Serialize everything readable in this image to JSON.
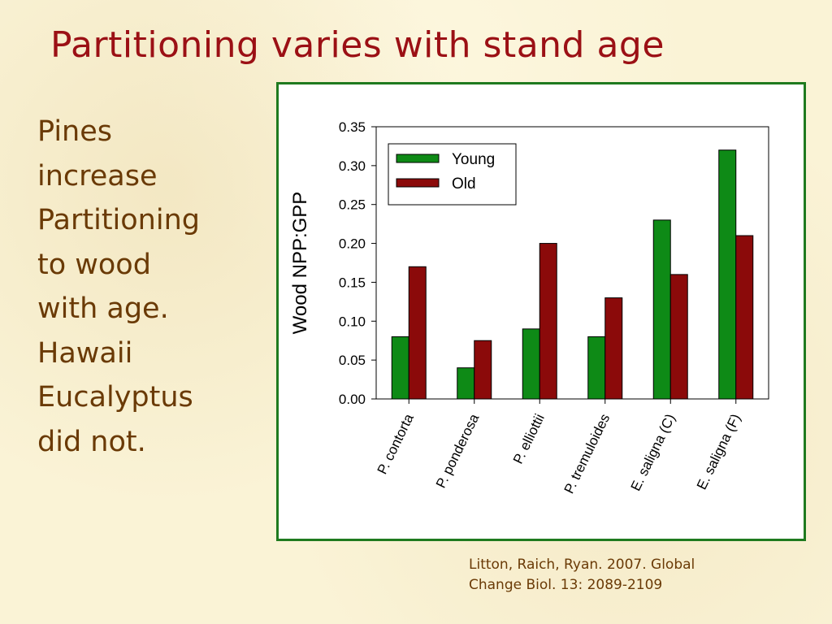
{
  "slide": {
    "title": "Partitioning varies with stand age",
    "side_text": "Pines\nincrease\nPartitioning\nto wood\nwith age.\nHawaii\nEucalyptus\ndid not.",
    "citation_line1": "Litton, Raich, Ryan. 2007. Global",
    "citation_line2": "Change Biol. 13: 2089-2109"
  },
  "colors": {
    "title": "#9b1015",
    "body_text": "#6a3a06",
    "frame": "#1f7a1f",
    "young": "#0e8a16",
    "old": "#8b0a0a"
  },
  "chart_data": {
    "type": "bar",
    "title": "",
    "xlabel": "",
    "ylabel": "Wood NPP:GPP",
    "categories": [
      "P. contorta",
      "P. ponderosa",
      "P. elliottii",
      "P. tremuloides",
      "E. saligna (C)",
      "E. saligna (F)"
    ],
    "series": [
      {
        "name": "Young",
        "color": "#0e8a16",
        "values": [
          0.08,
          0.04,
          0.09,
          0.08,
          0.23,
          0.32
        ]
      },
      {
        "name": "Old",
        "color": "#8b0a0a",
        "values": [
          0.17,
          0.075,
          0.2,
          0.13,
          0.16,
          0.21
        ]
      }
    ],
    "ylim": [
      0,
      0.35
    ],
    "yticks": [
      0.0,
      0.05,
      0.1,
      0.15,
      0.2,
      0.25,
      0.3,
      0.35
    ],
    "ytick_labels": [
      "0.00",
      "0.05",
      "0.10",
      "0.15",
      "0.20",
      "0.25",
      "0.30",
      "0.35"
    ],
    "grid": false,
    "legend": "top-left"
  }
}
